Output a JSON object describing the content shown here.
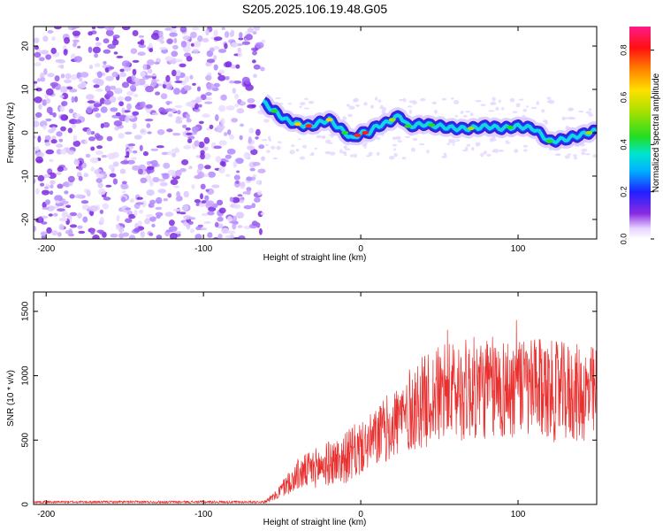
{
  "figure": {
    "title": "S205.2025.106.19.48.G05"
  },
  "chart_data": [
    {
      "type": "heatmap",
      "xlabel": "Height of straight line (km)",
      "ylabel": "Frequency (Hz)",
      "xlim": [
        -208,
        150
      ],
      "ylim": [
        -24.5,
        24.5
      ],
      "xticks": [
        -200,
        -100,
        0,
        100
      ],
      "xtick_labels": [
        "-200",
        "-100",
        "0",
        "100"
      ],
      "yticks": [
        -20,
        -10,
        0,
        10,
        20
      ],
      "ytick_labels": [
        "-20",
        "-10",
        "0",
        "10",
        "20"
      ],
      "noise_region_x": [
        -208,
        -62
      ],
      "ridge": {
        "x": [
          -62,
          -55,
          -48,
          -40,
          -32,
          -25,
          -20,
          -15,
          -10,
          -5,
          0,
          5,
          10,
          15,
          20,
          25,
          30,
          40,
          50,
          60,
          70,
          80,
          90,
          100,
          110,
          120,
          130,
          140,
          150
        ],
        "freq": [
          7,
          5,
          3,
          2,
          1.5,
          2.5,
          3,
          1.5,
          0,
          -1.5,
          0,
          0,
          1.5,
          2,
          3,
          4,
          1.5,
          2,
          1.5,
          1,
          1,
          1.5,
          1,
          1.5,
          1,
          -2,
          -1.5,
          -0.5,
          0.5
        ]
      },
      "colorbar": {
        "label": "Normalized spectral amplitude",
        "ticks": [
          0.0,
          0.2,
          0.4,
          0.6,
          0.8
        ],
        "tick_labels": [
          "0.0",
          "0.2",
          "0.4",
          "0.6",
          "0.8"
        ],
        "range": [
          0,
          0.9
        ]
      },
      "grid": false
    },
    {
      "type": "line",
      "xlabel": "Height of straight line (km)",
      "ylabel": "SNR (10 * v/v)",
      "xlim": [
        -208,
        150
      ],
      "ylim": [
        0,
        1650
      ],
      "xticks": [
        -200,
        -100,
        0,
        100
      ],
      "xtick_labels": [
        "-200",
        "-100",
        "0",
        "100"
      ],
      "yticks": [
        0,
        500,
        1000,
        1500
      ],
      "ytick_labels": [
        "0",
        "500",
        "1000",
        "1500"
      ],
      "series": [
        {
          "color": "#e8302f",
          "envelope_x": [
            -208,
            -62,
            -55,
            -50,
            -45,
            -40,
            -30,
            -20,
            -10,
            0,
            10,
            20,
            30,
            40,
            50,
            60,
            70,
            80,
            90,
            100,
            110,
            120,
            130,
            140,
            150
          ],
          "envelope_y": [
            15,
            15,
            60,
            120,
            180,
            230,
            280,
            320,
            360,
            430,
            520,
            620,
            720,
            800,
            850,
            880,
            900,
            900,
            900,
            900,
            890,
            880,
            870,
            860,
            850
          ]
        }
      ],
      "grid": false
    }
  ]
}
